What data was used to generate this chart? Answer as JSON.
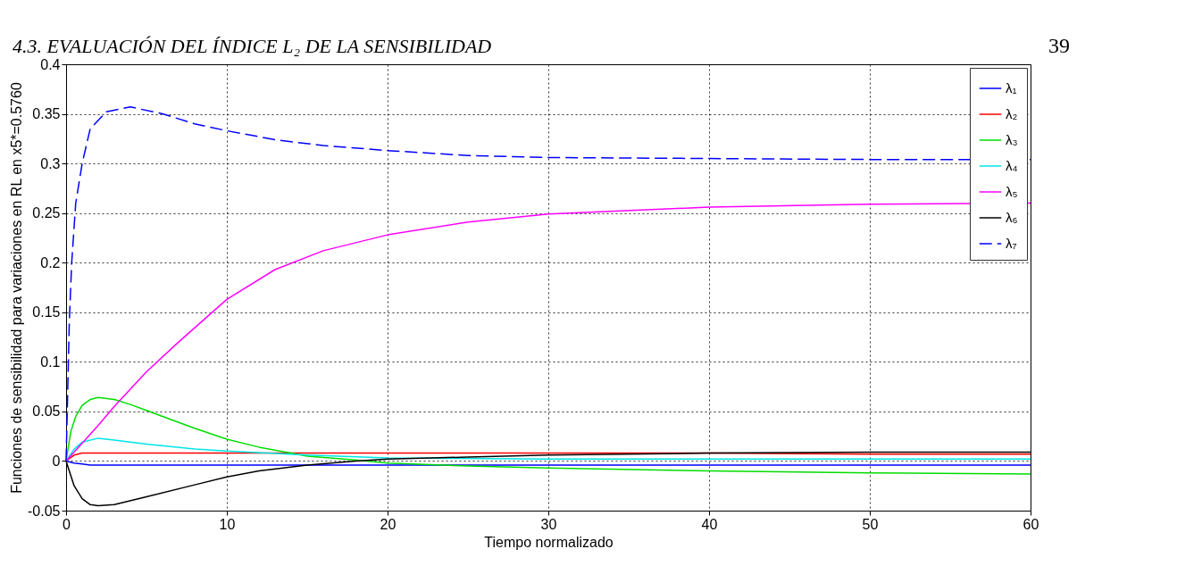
{
  "chart_data": {
    "type": "line",
    "xlabel": "Tiempo normalizado",
    "ylabel": "Funciones de sensibilidad para variaciones en RL en x5*=0.5760",
    "annotations": [
      "4.3.  EVALUACIÓN DEL ÍNDICE L₂ DE LA SENSIBILIDAD",
      "39"
    ],
    "xlim": [
      0,
      60
    ],
    "xticks": [
      0,
      10,
      20,
      30,
      40,
      50,
      60
    ],
    "ylim": [
      -0.05,
      0.4
    ],
    "yticks": [
      -0.05,
      0,
      0.05,
      0.1,
      0.15,
      0.2,
      0.25,
      0.3,
      0.35,
      0.4
    ],
    "grid": true,
    "legend": "top right",
    "marker": "none",
    "series": [
      {
        "name": "λ₁",
        "color": "#0000ff",
        "line_style": "solid",
        "x": [
          0,
          0.5,
          1,
          1.5,
          3,
          10,
          20,
          30,
          40,
          50,
          60
        ],
        "values": [
          0,
          -0.002,
          -0.003,
          -0.004,
          -0.004,
          -0.004,
          -0.004,
          -0.004,
          -0.004,
          -0.004,
          -0.004
        ]
      },
      {
        "name": "λ₂",
        "color": "#ff0000",
        "line_style": "solid",
        "x": [
          0,
          0.5,
          1,
          2,
          10,
          20,
          30,
          40,
          50,
          60
        ],
        "values": [
          0,
          0.006,
          0.008,
          0.008,
          0.008,
          0.008,
          0.008,
          0.008,
          0.007,
          0.007
        ]
      },
      {
        "name": "λ₃",
        "color": "#00dd00",
        "line_style": "solid",
        "x": [
          0,
          0.3,
          0.6,
          1,
          1.5,
          2,
          3,
          4,
          5,
          6,
          8,
          10,
          12,
          15,
          18,
          20,
          25,
          30,
          40,
          50,
          60
        ],
        "values": [
          0,
          0.03,
          0.045,
          0.056,
          0.062,
          0.064,
          0.062,
          0.057,
          0.051,
          0.045,
          0.033,
          0.022,
          0.014,
          0.005,
          0.001,
          -0.002,
          -0.005,
          -0.007,
          -0.01,
          -0.012,
          -0.013
        ]
      },
      {
        "name": "λ₄",
        "color": "#00e5e5",
        "line_style": "solid",
        "x": [
          0,
          0.5,
          1,
          2,
          3,
          5,
          8,
          10,
          15,
          20,
          30,
          40,
          50,
          60
        ],
        "values": [
          0,
          0.012,
          0.019,
          0.023,
          0.021,
          0.017,
          0.012,
          0.01,
          0.006,
          0.003,
          0.002,
          0.002,
          0.002,
          0.002
        ]
      },
      {
        "name": "λ₅",
        "color": "#ff00ff",
        "line_style": "solid",
        "x": [
          0,
          1,
          2,
          3,
          5,
          7,
          10,
          13,
          16,
          20,
          25,
          30,
          40,
          50,
          60
        ],
        "values": [
          0,
          0.018,
          0.036,
          0.055,
          0.09,
          0.12,
          0.163,
          0.193,
          0.212,
          0.228,
          0.241,
          0.249,
          0.256,
          0.259,
          0.26
        ]
      },
      {
        "name": "λ₆",
        "color": "#000000",
        "line_style": "solid",
        "x": [
          0,
          0.5,
          1,
          1.5,
          2,
          3,
          5,
          8,
          10,
          12,
          15,
          18,
          20,
          25,
          30,
          40,
          50,
          60
        ],
        "values": [
          0,
          -0.025,
          -0.038,
          -0.044,
          -0.045,
          -0.044,
          -0.036,
          -0.024,
          -0.016,
          -0.01,
          -0.004,
          0,
          0.002,
          0.004,
          0.006,
          0.008,
          0.009,
          0.009
        ]
      },
      {
        "name": "λ₇",
        "color": "#0000ff",
        "line_style": "dashed",
        "x": [
          0,
          0.1,
          0.2,
          0.35,
          0.6,
          1,
          1.5,
          2.5,
          4,
          6,
          8,
          10,
          13,
          16,
          20,
          25,
          30,
          40,
          50,
          60
        ],
        "values": [
          0,
          0.07,
          0.14,
          0.2,
          0.26,
          0.3,
          0.335,
          0.352,
          0.357,
          0.35,
          0.34,
          0.333,
          0.324,
          0.318,
          0.313,
          0.308,
          0.306,
          0.305,
          0.304,
          0.304
        ]
      }
    ]
  }
}
